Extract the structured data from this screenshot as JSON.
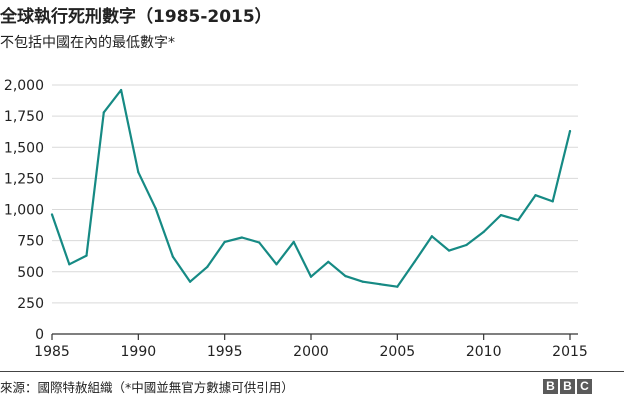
{
  "title": "全球執行死刑數字（1985-2015）",
  "subtitle": "不包括中國在內的最低數字*",
  "source": "來源：國際特赦組織（*中國並無官方數據可供引用）",
  "logo": [
    "B",
    "B",
    "C"
  ],
  "colors": {
    "line": "#168a84",
    "grid": "#d9d9d9",
    "axis": "#333333"
  },
  "chart_data": {
    "type": "line",
    "title": "全球執行死刑數字（1985-2015）",
    "subtitle": "不包括中國在內的最低數字*",
    "xlabel": "",
    "ylabel": "",
    "xlim": [
      1985,
      2015
    ],
    "ylim": [
      0,
      2000
    ],
    "x_ticks": [
      1985,
      1990,
      1995,
      2000,
      2005,
      2010,
      2015
    ],
    "x_tick_labels": [
      "1985",
      "1990",
      "1995",
      "2000",
      "2005",
      "2010",
      "2015"
    ],
    "y_ticks": [
      0,
      250,
      500,
      750,
      1000,
      1250,
      1500,
      1750,
      2000
    ],
    "y_tick_labels": [
      "0",
      "250",
      "500",
      "750",
      "1,000",
      "1,250",
      "1,500",
      "1,750",
      "2,000"
    ],
    "grid": true,
    "series": [
      {
        "name": "執行死刑數字",
        "x": [
          1985,
          1986,
          1987,
          1988,
          1989,
          1990,
          1991,
          1992,
          1993,
          1994,
          1995,
          1996,
          1997,
          1998,
          1999,
          2000,
          2001,
          2002,
          2003,
          2004,
          2005,
          2006,
          2007,
          2008,
          2009,
          2010,
          2011,
          2012,
          2013,
          2014,
          2015
        ],
        "values": [
          960,
          560,
          630,
          1780,
          1960,
          1300,
          1010,
          620,
          420,
          540,
          740,
          775,
          735,
          560,
          740,
          460,
          580,
          465,
          420,
          400,
          380,
          580,
          785,
          670,
          715,
          820,
          955,
          915,
          1115,
          1065,
          1630
        ]
      }
    ]
  }
}
